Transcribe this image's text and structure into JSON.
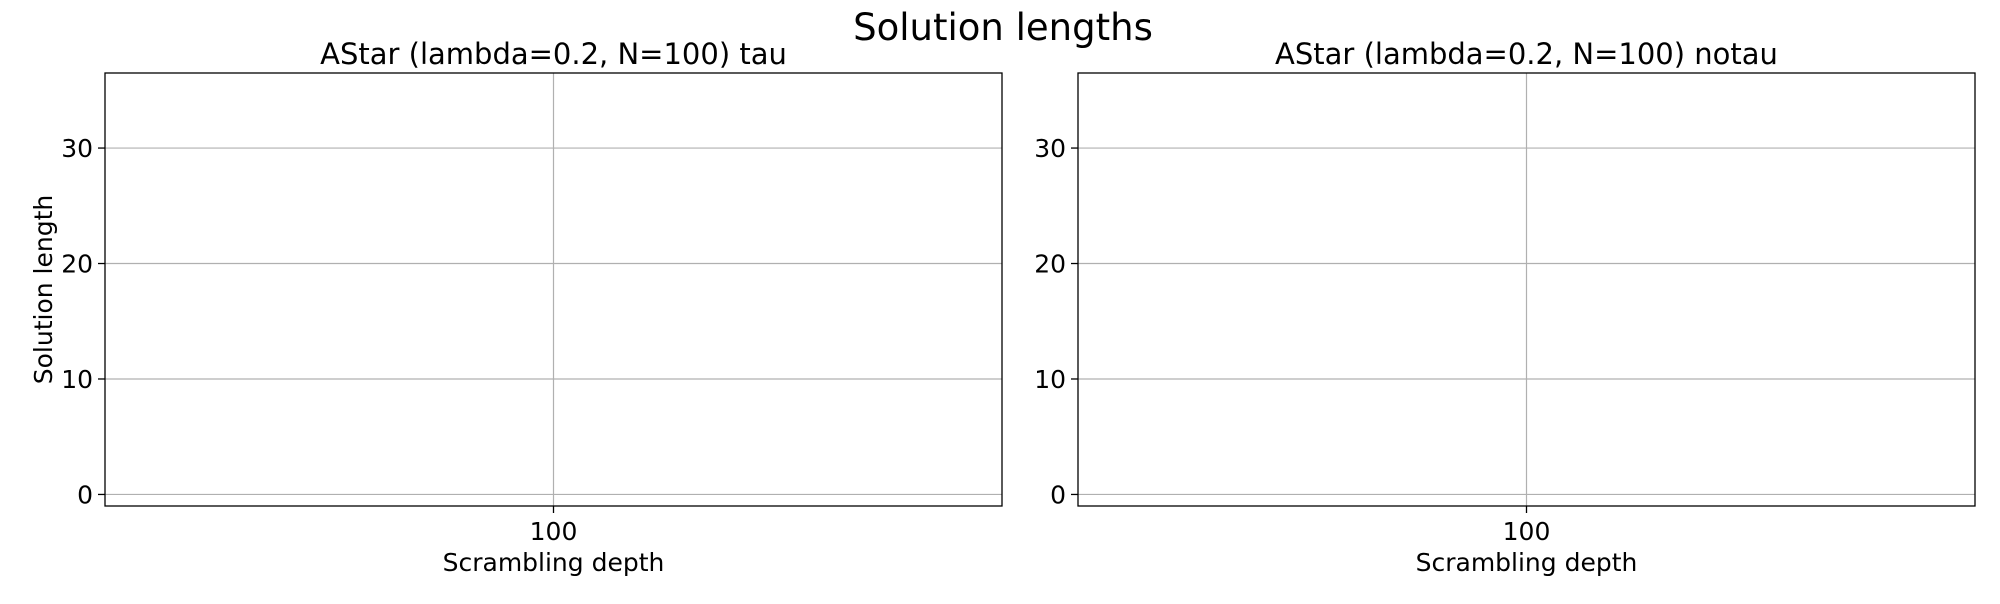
{
  "figure": {
    "suptitle": "Solution lengths"
  },
  "chart_data": [
    {
      "type": "line",
      "title": "AStar (lambda=0.2, N=100) tau",
      "xlabel": "Scrambling depth",
      "ylabel": "Solution length",
      "x_ticks": [
        100
      ],
      "y_ticks": [
        0,
        10,
        20,
        30
      ],
      "xlim": [
        99.9,
        100.1
      ],
      "ylim": [
        -1,
        36.5
      ],
      "grid": true,
      "series": []
    },
    {
      "type": "line",
      "title": "AStar (lambda=0.2, N=100) notau",
      "xlabel": "Scrambling depth",
      "ylabel": "",
      "x_ticks": [
        100
      ],
      "y_ticks": [
        0,
        10,
        20,
        30
      ],
      "xlim": [
        99.9,
        100.1
      ],
      "ylim": [
        -1,
        36.5
      ],
      "grid": true,
      "series": []
    }
  ]
}
